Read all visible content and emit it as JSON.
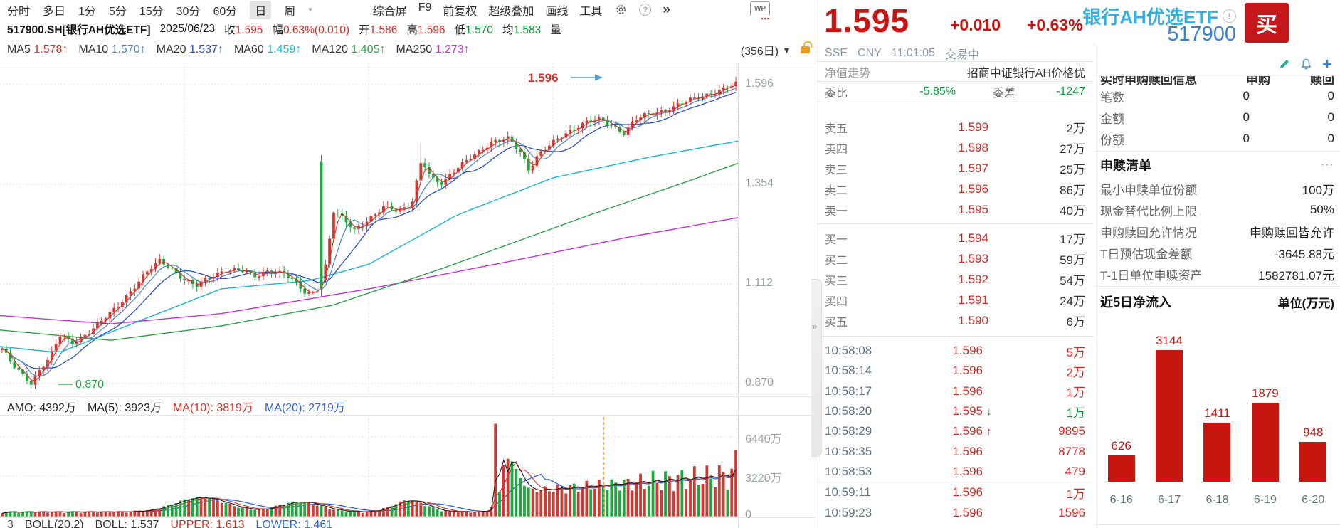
{
  "toolbar": {
    "periods": [
      {
        "label": "分时"
      },
      {
        "label": "多日"
      },
      {
        "label": "1分"
      },
      {
        "label": "5分"
      },
      {
        "label": "15分"
      },
      {
        "label": "30分"
      },
      {
        "label": "60分"
      },
      {
        "label": "日",
        "active": true
      },
      {
        "label": "周"
      }
    ],
    "dropdown_caret": "▾",
    "right_items": [
      "综合屏",
      "F9",
      "前复权",
      "超级叠加",
      "画线",
      "工具"
    ],
    "help_glyph": "?",
    "more_glyph": "»"
  },
  "info_row": {
    "symbol": "517900.SH[银行AH优选ETF]",
    "date": "2025/06/23",
    "fields": [
      {
        "label": "收",
        "value": "1.595",
        "color": "#d0342c"
      },
      {
        "label": "幅",
        "value": "0.63%(0.010)",
        "color": "#d0342c"
      },
      {
        "label": "开",
        "value": "1.586",
        "color": "#d0342c"
      },
      {
        "label": "高",
        "value": "1.596",
        "color": "#d0342c"
      },
      {
        "label": "低",
        "value": "1.570",
        "color": "#089a36"
      },
      {
        "label": "均",
        "value": "1.583",
        "color": "#089a36"
      },
      {
        "label": "量",
        "value": "",
        "color": "#333333"
      }
    ],
    "wp_icon": "WP",
    "wp_dots": "▪▪▪"
  },
  "ma_row": {
    "arrow": "↑",
    "items": [
      {
        "label": "MA5",
        "value": "1.578",
        "color": "#d0342c"
      },
      {
        "label": "MA10",
        "value": "1.570",
        "color": "#4a7fd0"
      },
      {
        "label": "MA20",
        "value": "1.537",
        "color": "#2b50c8"
      },
      {
        "label": "MA60",
        "value": "1.459",
        "color": "#18b6cf"
      },
      {
        "label": "MA120",
        "value": "1.405",
        "color": "#2fa24a"
      },
      {
        "label": "MA250",
        "value": "1.273",
        "color": "#c92fd6"
      }
    ],
    "range_label": "(356日)",
    "range_caret": "▼"
  },
  "chart": {
    "price_axis": [
      "1.596",
      "1.354",
      "1.112",
      "0.870"
    ],
    "volume_axis": [
      "6440万",
      "3220万",
      "0"
    ],
    "high_annotation": "1.596",
    "low_annotation": "0.870",
    "amo_row": [
      {
        "text": "AMO: 4392万",
        "color": "#222222"
      },
      {
        "text": "MA(5): 3923万",
        "color": "#222222"
      },
      {
        "text": "MA(10): 3819万",
        "color": "#d0342c"
      },
      {
        "text": "MA(20): 2719万",
        "color": "#2b62d9"
      }
    ],
    "boll_row": [
      {
        "text": "3",
        "color": "#555555"
      },
      {
        "text": "BOLL(20,2)",
        "color": "#333333"
      },
      {
        "text": "BOLL: 1.537",
        "color": "#333333"
      },
      {
        "text": "UPPER: 1.613",
        "color": "#d0342c"
      },
      {
        "text": "LOWER: 1.461",
        "color": "#2b62d9"
      }
    ],
    "chart_data": {
      "type": "candlestick",
      "title": "517900 银行AH优选ETF 日K (356日)",
      "ylim": [
        0.8,
        1.66
      ],
      "price_gridlines": [
        1.596,
        1.354,
        1.112,
        0.87
      ],
      "volume_gridlines_wan": [
        6440,
        3220,
        0
      ],
      "rendered_candles": 178,
      "last_price": 1.596,
      "low_price": 0.87,
      "up_color": "#cf3a32",
      "down_color": "#1fa63d",
      "close_path": [
        [
          0.0,
          0.952
        ],
        [
          0.012,
          0.92
        ],
        [
          0.025,
          0.898
        ],
        [
          0.04,
          0.872
        ],
        [
          0.052,
          0.905
        ],
        [
          0.065,
          0.93
        ],
        [
          0.08,
          0.99
        ],
        [
          0.095,
          0.97
        ],
        [
          0.11,
          0.985
        ],
        [
          0.13,
          1.01
        ],
        [
          0.15,
          1.045
        ],
        [
          0.17,
          1.085
        ],
        [
          0.195,
          1.135
        ],
        [
          0.215,
          1.168
        ],
        [
          0.232,
          1.15
        ],
        [
          0.25,
          1.12
        ],
        [
          0.265,
          1.105
        ],
        [
          0.285,
          1.13
        ],
        [
          0.305,
          1.148
        ],
        [
          0.325,
          1.145
        ],
        [
          0.345,
          1.128
        ],
        [
          0.365,
          1.148
        ],
        [
          0.385,
          1.138
        ],
        [
          0.4,
          1.112
        ],
        [
          0.415,
          1.085
        ],
        [
          0.428,
          1.095
        ],
        [
          0.44,
          1.15
        ],
        [
          0.452,
          1.29
        ],
        [
          0.465,
          1.268
        ],
        [
          0.48,
          1.24
        ],
        [
          0.5,
          1.272
        ],
        [
          0.52,
          1.3
        ],
        [
          0.54,
          1.285
        ],
        [
          0.558,
          1.305
        ],
        [
          0.572,
          1.42
        ],
        [
          0.585,
          1.368
        ],
        [
          0.6,
          1.352
        ],
        [
          0.618,
          1.39
        ],
        [
          0.635,
          1.42
        ],
        [
          0.655,
          1.438
        ],
        [
          0.672,
          1.455
        ],
        [
          0.69,
          1.468
        ],
        [
          0.705,
          1.44
        ],
        [
          0.718,
          1.388
        ],
        [
          0.73,
          1.42
        ],
        [
          0.748,
          1.452
        ],
        [
          0.765,
          1.478
        ],
        [
          0.782,
          1.492
        ],
        [
          0.8,
          1.505
        ],
        [
          0.818,
          1.512
        ],
        [
          0.832,
          1.498
        ],
        [
          0.848,
          1.478
        ],
        [
          0.862,
          1.508
        ],
        [
          0.878,
          1.522
        ],
        [
          0.895,
          1.532
        ],
        [
          0.912,
          1.54
        ],
        [
          0.93,
          1.552
        ],
        [
          0.95,
          1.565
        ],
        [
          0.968,
          1.578
        ],
        [
          0.985,
          1.588
        ],
        [
          1.0,
          1.596
        ]
      ],
      "ma_overlays": {
        "ma60": [
          [
            0,
            0.96
          ],
          [
            0.08,
            0.945
          ],
          [
            0.2,
            1.03
          ],
          [
            0.3,
            1.1
          ],
          [
            0.42,
            1.12
          ],
          [
            0.5,
            1.16
          ],
          [
            0.62,
            1.28
          ],
          [
            0.75,
            1.37
          ],
          [
            0.88,
            1.42
          ],
          [
            1,
            1.459
          ]
        ],
        "ma120": [
          [
            0,
            1.0
          ],
          [
            0.15,
            0.975
          ],
          [
            0.3,
            1.01
          ],
          [
            0.45,
            1.06
          ],
          [
            0.6,
            1.15
          ],
          [
            0.8,
            1.28
          ],
          [
            0.93,
            1.36
          ],
          [
            1,
            1.405
          ]
        ],
        "ma250": [
          [
            0,
            1.035
          ],
          [
            0.15,
            1.015
          ],
          [
            0.3,
            1.04
          ],
          [
            0.5,
            1.1
          ],
          [
            0.7,
            1.17
          ],
          [
            0.85,
            1.225
          ],
          [
            1,
            1.273
          ]
        ]
      },
      "volume_spike_x": 0.672,
      "volume_marker_x": 0.818
    }
  },
  "header": {
    "price": "1.595",
    "change": "+0.010",
    "pct": "+0.63%",
    "name": "银行AH优选ETF",
    "info_glyph": "!",
    "code": "517900",
    "buy_label": "买"
  },
  "quote": {
    "exchange": "SSE",
    "currency": "CNY",
    "time": "11:01:05",
    "status": "交易中",
    "nav_tab": "净值走势",
    "index_name": "招商中证银行AH价格优",
    "weibi_label": "委比",
    "weibi_value": "-5.85%",
    "weicha_label": "委差",
    "weicha_value": "-1247",
    "asks": [
      {
        "label": "卖五",
        "price": "1.599",
        "vol": "2万"
      },
      {
        "label": "卖四",
        "price": "1.598",
        "vol": "27万"
      },
      {
        "label": "卖三",
        "price": "1.597",
        "vol": "25万"
      },
      {
        "label": "卖二",
        "price": "1.596",
        "vol": "86万"
      },
      {
        "label": "卖一",
        "price": "1.595",
        "vol": "40万"
      }
    ],
    "bids": [
      {
        "label": "买一",
        "price": "1.594",
        "vol": "17万"
      },
      {
        "label": "买二",
        "price": "1.593",
        "vol": "59万"
      },
      {
        "label": "买三",
        "price": "1.592",
        "vol": "54万"
      },
      {
        "label": "买四",
        "price": "1.591",
        "vol": "24万"
      },
      {
        "label": "买五",
        "price": "1.590",
        "vol": "6万"
      }
    ],
    "ticks": [
      {
        "time": "10:58:08",
        "price": "1.596",
        "dir": "",
        "vol": "5万",
        "vol_color": "up"
      },
      {
        "time": "10:58:14",
        "price": "1.596",
        "dir": "",
        "vol": "2万",
        "vol_color": "up"
      },
      {
        "time": "10:58:17",
        "price": "1.596",
        "dir": "",
        "vol": "1万",
        "vol_color": "up"
      },
      {
        "time": "10:58:20",
        "price": "1.595",
        "dir": "down",
        "vol": "1万",
        "vol_color": "down"
      },
      {
        "time": "10:58:29",
        "price": "1.596",
        "dir": "up",
        "vol": "9895",
        "vol_color": "up"
      },
      {
        "time": "10:58:35",
        "price": "1.596",
        "dir": "",
        "vol": "8778",
        "vol_color": "up"
      },
      {
        "time": "10:58:53",
        "price": "1.596",
        "dir": "",
        "vol": "479",
        "vol_color": "up"
      },
      {
        "time": "10:59:11",
        "price": "1.596",
        "dir": "",
        "vol": "1万",
        "vol_color": "up",
        "minute_sep": true
      },
      {
        "time": "10:59:23",
        "price": "1.596",
        "dir": "",
        "vol": "1596",
        "vol_color": "up"
      }
    ],
    "collapse_glyph": "»"
  },
  "right_panel": {
    "clipped_header": {
      "left": "实时申购赎回信息",
      "col1": "申购",
      "col2": "赎回"
    },
    "table_rows": [
      {
        "label": "笔数",
        "v1": "0",
        "v2": "0"
      },
      {
        "label": "金额",
        "v1": "0",
        "v2": "0"
      },
      {
        "label": "份额",
        "v1": "0",
        "v2": "0"
      }
    ],
    "shuhui": {
      "title": "申赎清单",
      "more": "···",
      "rows": [
        {
          "label": "最小申赎单位份额",
          "value": "100万"
        },
        {
          "label": "现金替代比例上限",
          "value": "50%"
        },
        {
          "label": "申购赎回允许情况",
          "value": "申购赎回皆允许"
        },
        {
          "label": "T日预估现金差额",
          "value": "-3645.88元"
        },
        {
          "label": "T-1日单位申赎资产",
          "value": "1582781.07元"
        }
      ]
    },
    "flow": {
      "title": "近5日净流入",
      "unit": "单位(万元)",
      "chart_data": {
        "type": "bar",
        "categories": [
          "6-16",
          "6-17",
          "6-18",
          "6-19",
          "6-20"
        ],
        "values": [
          626,
          3144,
          1411,
          1879,
          948
        ],
        "bar_color": "#c9150f",
        "ylabel": "万元"
      }
    }
  }
}
